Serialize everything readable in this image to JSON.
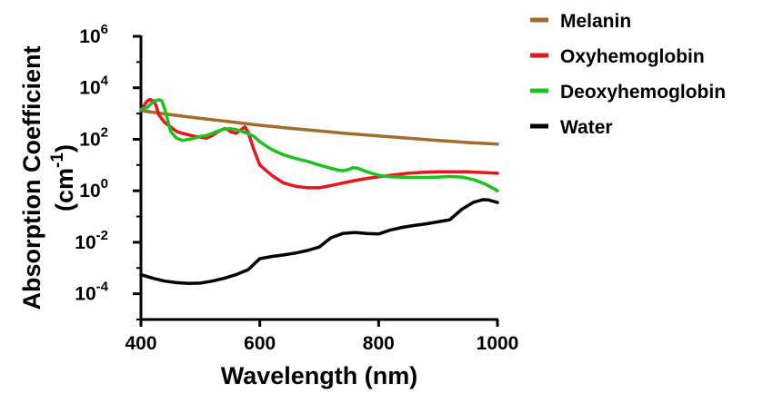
{
  "chart_data": {
    "type": "line",
    "title": "",
    "xlabel": "Wavelength (nm)",
    "ylabel": {
      "line1": "Absorption Coefficient",
      "line2_prefix": "(cm",
      "line2_sup": "-1",
      "line2_suffix": ")"
    },
    "xlim": [
      400,
      1000
    ],
    "ylim_log10": [
      -5,
      6
    ],
    "y_scale": "log",
    "grid": false,
    "legend_position": "top-right",
    "x_ticks": [
      "400",
      "600",
      "800",
      "1000"
    ],
    "y_ticks": [
      {
        "base": "10",
        "exp": "6"
      },
      {
        "base": "10",
        "exp": "4"
      },
      {
        "base": "10",
        "exp": "2"
      },
      {
        "base": "10",
        "exp": "0"
      },
      {
        "base": "10",
        "exp": "-2"
      },
      {
        "base": "10",
        "exp": "-4"
      }
    ],
    "series": [
      {
        "name": "Melanin",
        "color": "#a06d2c",
        "x": [
          400,
          450,
          500,
          550,
          600,
          650,
          700,
          750,
          800,
          850,
          900,
          950,
          1000
        ],
        "y": [
          1300,
          900,
          650,
          480,
          350,
          270,
          210,
          165,
          135,
          110,
          90,
          75,
          65
        ]
      },
      {
        "name": "Oxyhemoglobin",
        "color": "#e8161b",
        "x": [
          400,
          405,
          410,
          415,
          420,
          425,
          430,
          440,
          450,
          460,
          470,
          480,
          490,
          500,
          510,
          520,
          530,
          540,
          545,
          550,
          560,
          570,
          575,
          580,
          590,
          600,
          620,
          640,
          660,
          680,
          700,
          720,
          740,
          760,
          780,
          800,
          820,
          850,
          880,
          900,
          950,
          1000
        ],
        "y": [
          1300,
          2000,
          3000,
          3500,
          3200,
          2200,
          900,
          450,
          300,
          200,
          170,
          150,
          130,
          120,
          110,
          140,
          200,
          260,
          250,
          200,
          170,
          250,
          300,
          200,
          40,
          10,
          4,
          2,
          1.5,
          1.3,
          1.3,
          1.6,
          2,
          2.5,
          3,
          3.5,
          4,
          4.8,
          5.3,
          5.5,
          5.5,
          4.8
        ]
      },
      {
        "name": "Deoxyhemoglobin",
        "color": "#1ec21e",
        "x": [
          400,
          410,
          420,
          425,
          430,
          435,
          440,
          450,
          460,
          470,
          480,
          490,
          500,
          510,
          520,
          530,
          540,
          550,
          555,
          560,
          570,
          580,
          590,
          600,
          620,
          640,
          660,
          680,
          700,
          720,
          730,
          740,
          750,
          757,
          765,
          780,
          800,
          820,
          850,
          880,
          900,
          920,
          940,
          960,
          980,
          1000
        ],
        "y": [
          1400,
          1700,
          2800,
          3200,
          3400,
          3200,
          1500,
          200,
          110,
          90,
          100,
          110,
          130,
          140,
          170,
          210,
          250,
          260,
          250,
          240,
          200,
          170,
          130,
          80,
          40,
          25,
          18,
          14,
          10,
          7.5,
          6.5,
          6,
          6.8,
          8,
          7.5,
          5.5,
          4,
          3.5,
          3.3,
          3.3,
          3.4,
          3.6,
          3.4,
          2.7,
          1.8,
          1
        ]
      },
      {
        "name": "Water",
        "color": "#000000",
        "x": [
          400,
          420,
          440,
          460,
          480,
          500,
          520,
          540,
          560,
          580,
          600,
          620,
          640,
          660,
          680,
          700,
          720,
          740,
          760,
          780,
          800,
          820,
          840,
          860,
          880,
          900,
          920,
          940,
          960,
          975,
          985,
          1000
        ],
        "y": [
          0.00055,
          0.0004,
          0.00031,
          0.00027,
          0.00025,
          0.00026,
          0.00031,
          0.0004,
          0.00055,
          0.00085,
          0.0023,
          0.0028,
          0.0032,
          0.0038,
          0.0048,
          0.0065,
          0.015,
          0.022,
          0.024,
          0.022,
          0.021,
          0.03,
          0.038,
          0.045,
          0.052,
          0.062,
          0.075,
          0.19,
          0.36,
          0.45,
          0.44,
          0.35
        ]
      }
    ]
  }
}
